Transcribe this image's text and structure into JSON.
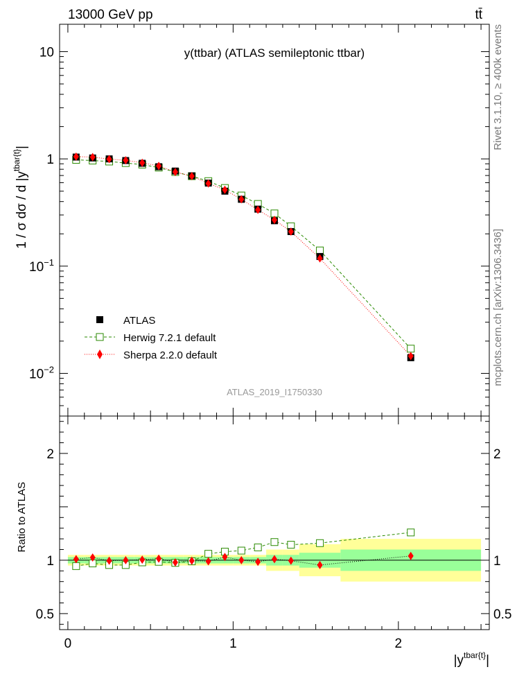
{
  "header": {
    "left": "13000 GeV pp",
    "right": "tt̄"
  },
  "side_labels": {
    "top": "Rivet 3.1.10, ≥ 400k events",
    "bottom": "mcplots.cern.ch [arXiv:1306.3436]"
  },
  "colors": {
    "atlas": "#000000",
    "herwig": "#2a8a00",
    "sherpa": "#ff0000",
    "band_inner": "#99ff99",
    "band_outer": "#ffff99"
  },
  "chart_data": {
    "type": "scatter",
    "title": "y(ttbar) (ATLAS semileptonic ttbar)",
    "watermark": "ATLAS_2019_I1750330",
    "ylabel_main": "1 / σ dσ / d |y",
    "ylabel_main_sup": "tbar{t}",
    "ylabel_main_close": "|",
    "ylabel_ratio": "Ratio to ATLAS",
    "xlabel": "|y",
    "xlabel_sup": "tbar{t}",
    "xlabel_close": "|",
    "xlim": [
      -0.05,
      2.55
    ],
    "ylim_main": [
      0.004,
      18
    ],
    "yscale_main": "log",
    "ylim_ratio": [
      0.35,
      2.35
    ],
    "x_ticks": [
      {
        "v": 0,
        "label": "0"
      },
      {
        "v": 1,
        "label": "1"
      },
      {
        "v": 2,
        "label": "2"
      }
    ],
    "y_ticks_main": [
      {
        "v": 0.01,
        "base": "10",
        "exp": "−2"
      },
      {
        "v": 0.1,
        "base": "10",
        "exp": "−1"
      },
      {
        "v": 1,
        "base": "1",
        "exp": ""
      },
      {
        "v": 10,
        "base": "10",
        "exp": ""
      }
    ],
    "y_ticks_ratio": [
      {
        "v": 0.5,
        "label": "0.5"
      },
      {
        "v": 1,
        "label": "1"
      },
      {
        "v": 2,
        "label": "2"
      }
    ],
    "bins": [
      {
        "lo": 0.0,
        "hi": 0.1
      },
      {
        "lo": 0.1,
        "hi": 0.2
      },
      {
        "lo": 0.2,
        "hi": 0.3
      },
      {
        "lo": 0.3,
        "hi": 0.4
      },
      {
        "lo": 0.4,
        "hi": 0.5
      },
      {
        "lo": 0.5,
        "hi": 0.6
      },
      {
        "lo": 0.6,
        "hi": 0.7
      },
      {
        "lo": 0.7,
        "hi": 0.8
      },
      {
        "lo": 0.8,
        "hi": 0.9
      },
      {
        "lo": 0.9,
        "hi": 1.0
      },
      {
        "lo": 1.0,
        "hi": 1.1
      },
      {
        "lo": 1.1,
        "hi": 1.2
      },
      {
        "lo": 1.2,
        "hi": 1.3
      },
      {
        "lo": 1.3,
        "hi": 1.4
      },
      {
        "lo": 1.4,
        "hi": 1.65
      },
      {
        "lo": 1.65,
        "hi": 2.5
      }
    ],
    "x": [
      0.05,
      0.15,
      0.25,
      0.35,
      0.45,
      0.55,
      0.65,
      0.75,
      0.85,
      0.95,
      1.05,
      1.15,
      1.25,
      1.35,
      1.525,
      2.075
    ],
    "series": [
      {
        "name": "ATLAS",
        "marker": "square-filled",
        "values": [
          1.04,
          1.02,
          1.0,
          0.965,
          0.91,
          0.845,
          0.77,
          0.695,
          0.595,
          0.5,
          0.42,
          0.34,
          0.265,
          0.21,
          0.123,
          0.014
        ]
      },
      {
        "name": "Herwig 7.2.1 default",
        "marker": "square-open",
        "line": "dashed",
        "values": [
          0.98,
          0.965,
          0.945,
          0.915,
          0.885,
          0.83,
          0.755,
          0.69,
          0.62,
          0.535,
          0.455,
          0.38,
          0.31,
          0.235,
          0.14,
          0.017
        ]
      },
      {
        "name": "Sherpa 2.2.0 default",
        "marker": "diamond-filled",
        "line": "dotted",
        "values": [
          1.05,
          1.04,
          0.995,
          0.97,
          0.92,
          0.86,
          0.755,
          0.69,
          0.59,
          0.515,
          0.42,
          0.335,
          0.27,
          0.21,
          0.118,
          0.0145
        ]
      }
    ],
    "ratio_series": [
      {
        "name": "Herwig 7.2.1 default",
        "values": [
          0.945,
          0.97,
          0.955,
          0.955,
          0.98,
          0.985,
          0.975,
          0.99,
          1.06,
          1.08,
          1.09,
          1.12,
          1.17,
          1.145,
          1.16,
          1.26
        ]
      },
      {
        "name": "Sherpa 2.2.0 default",
        "values": [
          1.01,
          1.025,
          0.995,
          1.0,
          1.005,
          1.015,
          0.98,
          0.995,
          0.99,
          1.03,
          1.0,
          0.985,
          1.01,
          0.995,
          0.955,
          1.04
        ]
      }
    ],
    "ratio_band_inner": [
      0.03,
      0.03,
      0.03,
      0.03,
      0.03,
      0.03,
      0.03,
      0.03,
      0.03,
      0.03,
      0.03,
      0.03,
      0.05,
      0.05,
      0.07,
      0.1
    ],
    "ratio_band_outer": [
      0.05,
      0.05,
      0.05,
      0.05,
      0.05,
      0.05,
      0.05,
      0.05,
      0.05,
      0.05,
      0.05,
      0.05,
      0.1,
      0.1,
      0.15,
      0.2
    ],
    "legend": {
      "position": "lower-left",
      "entries": [
        "ATLAS",
        "Herwig 7.2.1 default",
        "Sherpa 2.2.0 default"
      ]
    }
  }
}
